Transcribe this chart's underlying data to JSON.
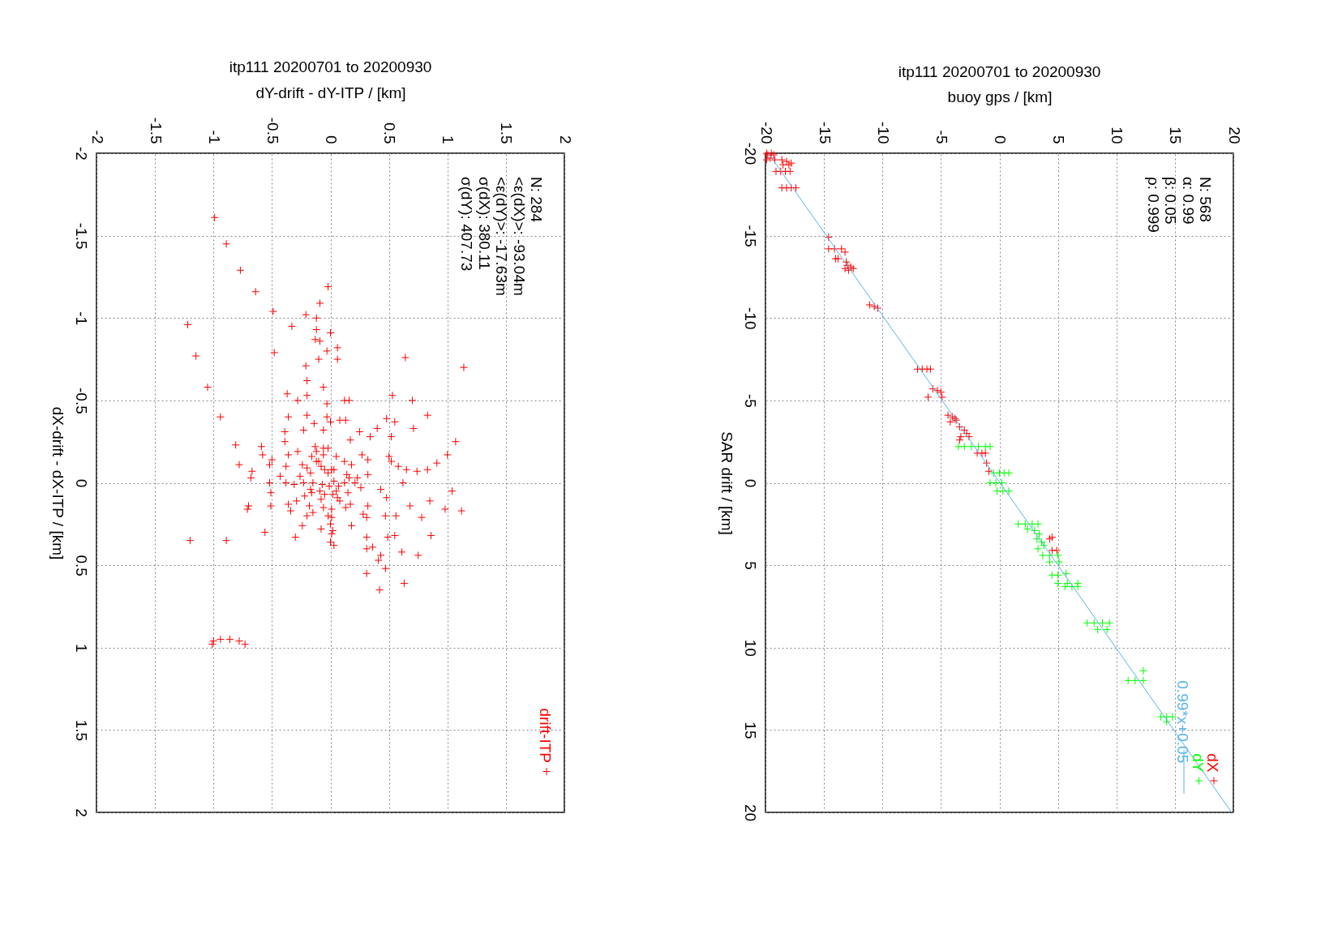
{
  "chart_data": [
    {
      "type": "scatter",
      "title": "itp111 20200701 to 20200930",
      "xlabel": "dY-drift - dY-ITP / [km]",
      "ylabel": "dX-drift - dX-ITP / [km]",
      "xlim": [
        -2,
        2
      ],
      "xticks": [
        -2,
        -1.5,
        -1,
        -0.5,
        0,
        0.5,
        1,
        1.5,
        2
      ],
      "ylim": [
        2,
        -2
      ],
      "yticks": [
        2,
        1.5,
        1,
        0.5,
        0,
        -0.5,
        -1,
        -1.5,
        -2
      ],
      "grid": true,
      "legend": "bottom right",
      "marker": "cross",
      "annotations": [
        "N: 284",
        "<ε(dX)>: -93.04m",
        "<ε(dY)>: -17.63m",
        "σ(dX): 380.11",
        "σ(dY): 407.73"
      ],
      "series": [
        {
          "name": "drift-ITP",
          "color": "#ff0000",
          "x": [
            -0.99,
            -0.89,
            -0.77,
            -0.64,
            -0.02,
            -0.09,
            -0.49,
            -0.21,
            -0.12,
            -1.22,
            -0.33,
            -0.12,
            0.0,
            -0.13,
            -0.09,
            0.06,
            -0.03,
            -0.48,
            -1.15,
            -0.1,
            0.06,
            0.64,
            1.14,
            -0.21,
            -0.2,
            -1.05,
            -0.06,
            -0.37,
            -0.2,
            0.53,
            -0.28,
            -0.03,
            0.12,
            0.16,
            0.7,
            -0.94,
            -0.36,
            -0.2,
            -0.03,
            0.48,
            0.83,
            0.08,
            0.13,
            0.55,
            -0.14,
            0.0,
            -0.39,
            -0.23,
            -0.06,
            0.4,
            0.25,
            0.71,
            0.34,
            0.52,
            -0.39,
            0.17,
            1.07,
            -0.81,
            -0.59,
            -0.58,
            -0.78,
            -0.67,
            -0.68,
            -0.7,
            -0.71,
            -0.56,
            -1.2,
            -0.89,
            -1.01,
            -1.0,
            -0.94,
            -0.86,
            -0.78,
            -0.73,
            1.0,
            0.91,
            0.83,
            0.74,
            1.04,
            0.85,
            0.98,
            1.12,
            0.78,
            0.86,
            0.75,
            0.31,
            0.47,
            0.63,
            0.42,
            -0.36,
            -0.28,
            -0.5,
            -0.52,
            -0.38,
            -0.24,
            -0.2,
            -0.16,
            -0.06,
            -0.12,
            -0.08,
            0.01,
            0.05,
            0.12,
            0.18,
            0.27,
            0.32,
            0.5,
            0.52,
            0.58,
            0.65,
            -0.43,
            -0.26,
            -0.17,
            -0.02,
            0.03,
            0.14,
            0.23,
            0.32,
            0.62,
            -0.52,
            -0.38,
            -0.31,
            -0.23,
            -0.15,
            -0.07,
            0.03,
            0.12,
            0.16,
            0.21,
            0.26,
            0.43,
            -0.51,
            -0.29,
            -0.22,
            -0.16,
            -0.09,
            -0.05,
            0.05,
            0.06,
            0.15,
            0.48,
            -0.51,
            -0.36,
            -0.34,
            -0.18,
            -0.06,
            0.01,
            0.13,
            0.17,
            0.32,
            0.68,
            -0.2,
            -0.15,
            -0.02,
            0.01,
            0.28,
            0.31,
            0.47,
            0.56,
            -0.24,
            -0.08,
            0.0,
            0.02,
            0.18,
            -0.3,
            0.01,
            0.03,
            0.0,
            0.31,
            0.49,
            0.55,
            0.36,
            0.31,
            0.61,
            0.43,
            0.41,
            -0.13,
            -0.12,
            -0.06,
            -0.02,
            -0.1,
            -0.05,
            -0.17,
            -0.01,
            0.02,
            0.07,
            -0.08,
            0.08
          ],
          "values": [
            -1.61,
            -1.45,
            -1.29,
            -1.16,
            -1.19,
            -1.09,
            -1.04,
            -1.02,
            -1.0,
            -0.96,
            -0.95,
            -0.93,
            -0.91,
            -0.87,
            -0.86,
            -0.82,
            -0.8,
            -0.79,
            -0.77,
            -0.75,
            -0.75,
            -0.76,
            -0.7,
            -0.71,
            -0.62,
            -0.58,
            -0.58,
            -0.54,
            -0.53,
            -0.53,
            -0.5,
            -0.48,
            -0.5,
            -0.5,
            -0.5,
            -0.4,
            -0.4,
            -0.41,
            -0.4,
            -0.39,
            -0.41,
            -0.38,
            -0.38,
            -0.37,
            -0.36,
            -0.37,
            -0.31,
            -0.32,
            -0.32,
            -0.33,
            -0.31,
            -0.33,
            -0.28,
            -0.28,
            -0.25,
            -0.26,
            -0.25,
            -0.23,
            -0.22,
            -0.17,
            -0.11,
            -0.07,
            -0.03,
            0.14,
            0.16,
            0.3,
            0.35,
            0.35,
            0.98,
            0.96,
            0.95,
            0.95,
            0.96,
            0.98,
            -0.17,
            -0.12,
            -0.08,
            -0.07,
            0.05,
            0.11,
            0.16,
            0.17,
            0.21,
            0.32,
            0.44,
            0.55,
            0.52,
            0.61,
            0.65,
            -0.17,
            -0.19,
            -0.14,
            -0.11,
            -0.1,
            -0.11,
            -0.09,
            -0.16,
            -0.17,
            -0.13,
            -0.1,
            -0.08,
            -0.16,
            -0.13,
            -0.11,
            -0.17,
            -0.14,
            -0.16,
            -0.13,
            -0.1,
            -0.08,
            -0.04,
            -0.04,
            -0.06,
            -0.06,
            -0.08,
            -0.05,
            -0.03,
            -0.05,
            0.0,
            0.0,
            0.0,
            0.01,
            0.0,
            0.0,
            0.01,
            -0.01,
            0.0,
            -0.03,
            0.0,
            0.03,
            0.04,
            0.06,
            0.11,
            0.08,
            0.06,
            0.05,
            0.07,
            0.05,
            0.09,
            0.06,
            0.09,
            0.14,
            0.13,
            0.17,
            0.14,
            0.15,
            0.16,
            0.15,
            0.13,
            0.14,
            0.14,
            0.2,
            0.18,
            0.2,
            0.21,
            0.19,
            0.21,
            0.2,
            0.2,
            0.26,
            0.28,
            0.25,
            0.29,
            0.26,
            0.33,
            0.31,
            0.38,
            0.36,
            0.33,
            0.33,
            0.32,
            0.39,
            0.4,
            0.42,
            0.44,
            0.47,
            -0.22,
            -0.19,
            -0.21,
            -0.21,
            -0.13,
            -0.08,
            0.04,
            0.02,
            0.07,
            0.02,
            0.1,
            0.11
          ]
        }
      ]
    },
    {
      "type": "scatter",
      "title": "itp111 20200701 to 20200930",
      "xlabel": "buoy gps / [km]",
      "ylabel": "SAR drift / [km]",
      "xlim": [
        -20,
        20
      ],
      "xticks": [
        -20,
        -15,
        -10,
        -5,
        0,
        5,
        10,
        15,
        20
      ],
      "ylim": [
        20,
        -20
      ],
      "yticks": [
        20,
        15,
        10,
        5,
        0,
        -5,
        -10,
        -15,
        -20
      ],
      "grid": true,
      "legend": "bottom right",
      "marker": "cross",
      "annotations": [
        "N: 568",
        "α: 0.99",
        "β: 0.05",
        "ρ: 0.999"
      ],
      "series": [
        {
          "name": "dX",
          "color": "#ff0000",
          "x": [
            -19.9,
            -19.5,
            -19.8,
            -19.3,
            -19.6,
            -19.9,
            -19.2,
            -18.6,
            -18.2,
            -17.8,
            -18.5,
            -18.0,
            -19.1,
            -18.7,
            -18.3,
            -17.9,
            -18.6,
            -18.2,
            -17.8,
            -17.4,
            -14.6,
            -14.6,
            -14.1,
            -13.5,
            -13.2,
            -13.8,
            -14.0,
            -13.1,
            -13.0,
            -12.7,
            -12.5,
            -12.9,
            -13.2,
            -11.1,
            -10.7,
            -10.4,
            -7.0,
            -6.6,
            -6.2,
            -5.9,
            -5.7,
            -5.3,
            -5.0,
            -6.1,
            -4.9,
            -4.4,
            -4.0,
            -3.8,
            -3.7,
            -4.2,
            -3.4,
            -3.0,
            -2.8,
            -3.3,
            -2.6,
            -3.4,
            -1.9,
            -1.5,
            -1.2,
            -1.1,
            -0.9,
            4.3,
            4.5,
            4.5,
            4.9
          ],
          "values": [
            -20.0,
            -20.0,
            -19.9,
            -19.9,
            -19.7,
            -19.6,
            -19.6,
            -19.6,
            -19.5,
            -19.4,
            -19.3,
            -19.3,
            -18.9,
            -18.9,
            -18.9,
            -18.9,
            -17.9,
            -17.9,
            -17.9,
            -17.9,
            -14.9,
            -14.2,
            -14.2,
            -14.2,
            -14.0,
            -13.6,
            -13.6,
            -13.4,
            -13.2,
            -13.1,
            -13.0,
            -12.9,
            -13.0,
            -10.8,
            -10.7,
            -10.6,
            -6.9,
            -6.9,
            -6.9,
            -6.9,
            -5.7,
            -5.6,
            -5.5,
            -5.2,
            -5.2,
            -4.1,
            -4.0,
            -3.9,
            -3.8,
            -3.7,
            -3.4,
            -3.2,
            -3.0,
            -2.8,
            -2.8,
            -2.6,
            -1.8,
            -1.8,
            -1.8,
            -1.2,
            -0.7,
            3.4,
            3.3,
            4.1,
            4.1
          ]
        },
        {
          "name": "dY",
          "color": "#00ff00",
          "x": [
            -3.5,
            -3.0,
            -2.4,
            -1.8,
            -1.2,
            -0.8,
            -0.5,
            0.0,
            0.4,
            0.8,
            -0.8,
            -0.3,
            0.2,
            -0.2,
            0.3,
            0.8,
            1.6,
            2.2,
            2.8,
            3.3,
            2.4,
            3.0,
            3.4,
            3.2,
            3.6,
            3.3,
            3.8,
            3.7,
            4.3,
            5.0,
            4.3,
            5.1,
            4.5,
            5.0,
            5.7,
            5.0,
            5.8,
            6.7,
            5.6,
            6.2,
            6.7,
            7.5,
            8.1,
            8.8,
            9.4,
            8.4,
            9.2,
            12.3,
            11.0,
            11.6,
            12.3,
            13.8,
            14.3,
            14.8,
            14.3
          ],
          "values": [
            -2.2,
            -2.2,
            -2.2,
            -2.2,
            -2.2,
            -2.2,
            -0.6,
            -0.6,
            -0.6,
            -0.6,
            0.0,
            0.0,
            0.0,
            0.5,
            0.5,
            0.5,
            2.5,
            2.5,
            2.5,
            2.5,
            2.8,
            2.9,
            3.1,
            3.4,
            3.6,
            4.0,
            3.8,
            4.4,
            4.4,
            4.4,
            4.8,
            4.8,
            5.6,
            5.6,
            5.5,
            6.1,
            6.1,
            6.1,
            6.3,
            6.3,
            6.3,
            8.5,
            8.5,
            8.5,
            8.5,
            8.9,
            8.9,
            11.4,
            12.0,
            12.0,
            12.0,
            14.2,
            14.2,
            14.2,
            14.5
          ]
        },
        {
          "name": "0.99*x+0.05",
          "type": "line",
          "marker": "none",
          "color": "#56b4e9",
          "x": [
            -19.75,
            19.85
          ],
          "values": [
            -20,
            20
          ]
        }
      ]
    }
  ]
}
